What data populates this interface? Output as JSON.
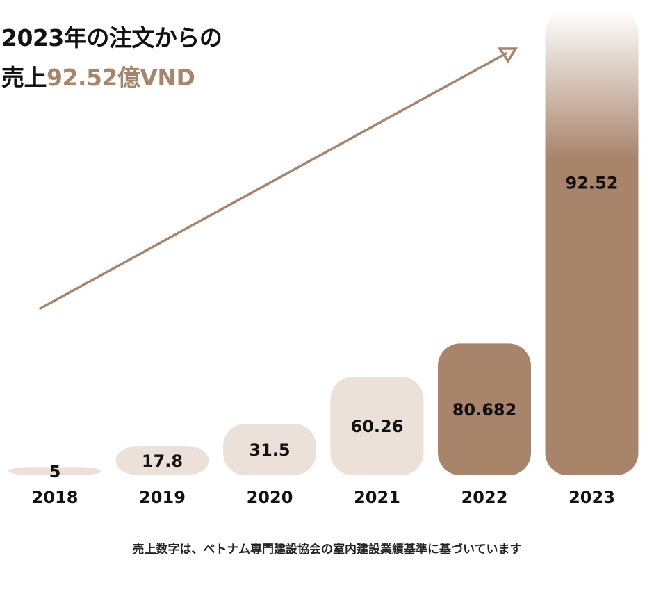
{
  "title": {
    "line1": "2023年の注文からの",
    "line2_prefix": "売上",
    "line2_accent": "92.52億VND"
  },
  "footnote": "売上数字は、ベトナム専門建設協会の室内建設業績基準に基づいています",
  "colors": {
    "light_bar": "#ece1d9",
    "dark_bar": "#a8846b",
    "arrow": "#a8846b",
    "text": "#111111"
  },
  "chart_data": {
    "type": "bar",
    "categories": [
      "2018",
      "2019",
      "2020",
      "2021",
      "2022",
      "2023"
    ],
    "values": [
      5,
      17.8,
      31.5,
      60.26,
      80.682,
      92.52
    ],
    "value_labels": [
      "5",
      "17.8",
      "31.5",
      "60.26",
      "80.682",
      "92.52"
    ],
    "highlight": [
      "light",
      "light",
      "light",
      "light",
      "dark",
      "dark-gradient"
    ],
    "annotations": [
      "upward trend arrow"
    ]
  }
}
